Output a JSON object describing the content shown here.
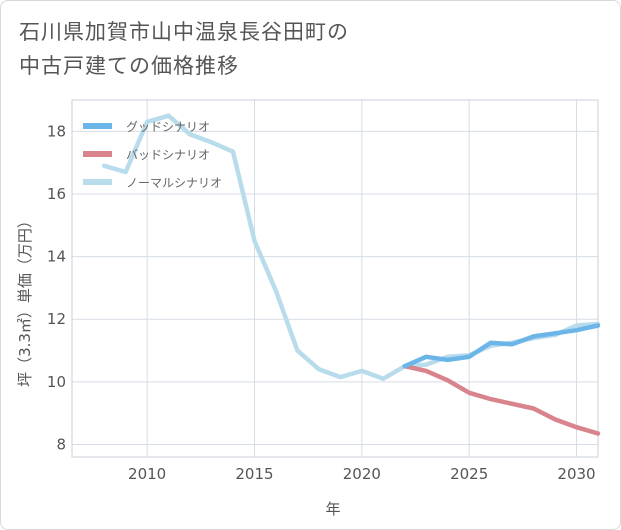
{
  "title": {
    "line1": "石川県加賀市山中温泉長谷田町の",
    "line2": "中古戸建ての価格推移"
  },
  "chart_data": {
    "type": "line",
    "xlabel": "年",
    "ylabel": "坪（3.3㎡）単価（万円）",
    "xlim": [
      2006.5,
      2031
    ],
    "ylim": [
      7.6,
      19.0
    ],
    "x_ticks": [
      2010,
      2015,
      2020,
      2025,
      2030
    ],
    "y_ticks": [
      8,
      10,
      12,
      14,
      16,
      18
    ],
    "grid": true,
    "legend_position": "top-left",
    "series": [
      {
        "name": "グッドシナリオ",
        "color": "#6bb5e8",
        "x": [
          2022,
          2023,
          2024,
          2025,
          2026,
          2027,
          2028,
          2029,
          2030,
          2031
        ],
        "y": [
          10.5,
          10.8,
          10.7,
          10.8,
          11.25,
          11.2,
          11.45,
          11.55,
          11.65,
          11.8
        ]
      },
      {
        "name": "バッドシナリオ",
        "color": "#d9848c",
        "x": [
          2022,
          2023,
          2024,
          2025,
          2026,
          2027,
          2028,
          2029,
          2030,
          2031
        ],
        "y": [
          10.5,
          10.35,
          10.05,
          9.65,
          9.45,
          9.3,
          9.15,
          8.8,
          8.55,
          8.35
        ]
      },
      {
        "name": "ノーマルシナリオ",
        "color": "#b9dcec",
        "x": [
          2008,
          2009,
          2010,
          2011,
          2012,
          2013,
          2014,
          2015,
          2016,
          2017,
          2018,
          2019,
          2020,
          2021,
          2022,
          2023,
          2024,
          2025,
          2026,
          2027,
          2028,
          2029,
          2030,
          2031
        ],
        "y": [
          16.9,
          16.7,
          18.3,
          18.5,
          17.9,
          17.65,
          17.35,
          14.5,
          12.9,
          11.0,
          10.4,
          10.15,
          10.35,
          10.1,
          10.5,
          10.55,
          10.8,
          10.85,
          11.15,
          11.25,
          11.4,
          11.5,
          11.8,
          11.85
        ]
      }
    ]
  }
}
